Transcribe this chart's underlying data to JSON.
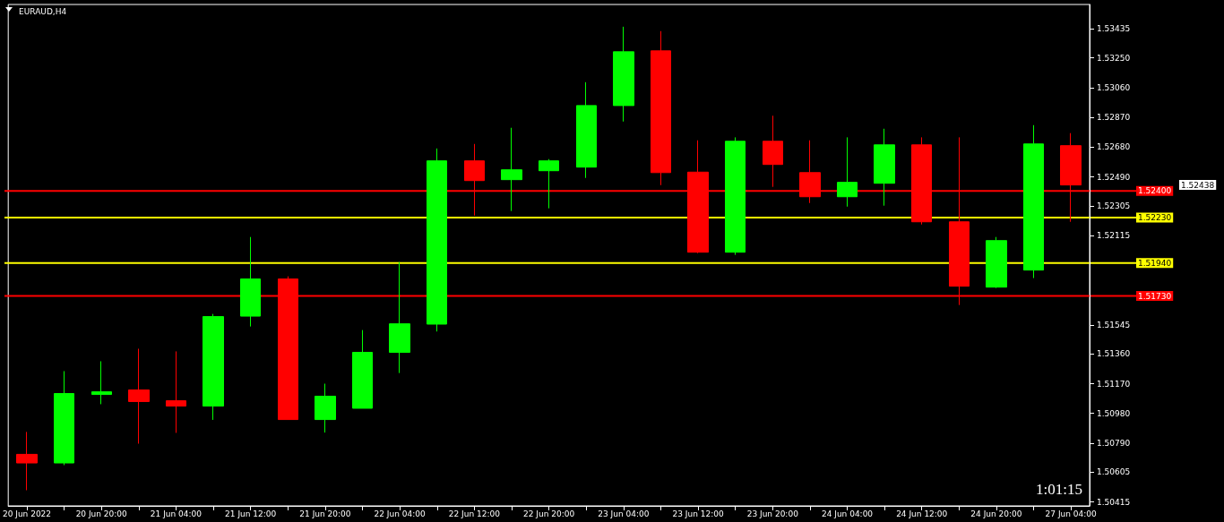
{
  "chart_data": {
    "type": "candlestick",
    "title": "EURAUD,H4",
    "categories": [
      "20 Jun 2022",
      null,
      "20 Jun 20:00",
      null,
      "21 Jun 04:00",
      null,
      "21 Jun 12:00",
      null,
      "21 Jun 20:00",
      null,
      "22 Jun 04:00",
      null,
      "22 Jun 12:00",
      null,
      "22 Jun 20:00",
      null,
      "23 Jun 04:00",
      null,
      "23 Jun 12:00",
      null,
      "23 Jun 20:00",
      null,
      "24 Jun 04:00",
      null,
      "24 Jun 12:00",
      null,
      "24 Jun 20:00",
      null,
      "27 Jun 04:00"
    ],
    "ohlc": [
      [
        1.50719,
        1.50862,
        1.5049,
        1.50664
      ],
      [
        1.50664,
        1.5125,
        1.5065,
        1.51107
      ],
      [
        1.51101,
        1.51313,
        1.51039,
        1.51118
      ],
      [
        1.5113,
        1.51393,
        1.50787,
        1.51056
      ],
      [
        1.51061,
        1.51376,
        1.50856,
        1.51027
      ],
      [
        1.51027,
        1.51615,
        1.50939,
        1.51598
      ],
      [
        1.51601,
        1.52106,
        1.51535,
        1.51838
      ],
      [
        1.51838,
        1.51855,
        1.50941,
        1.50941
      ],
      [
        1.50941,
        1.5117,
        1.50858,
        1.5109
      ],
      [
        1.51013,
        1.51512,
        1.51013,
        1.5137
      ],
      [
        1.5137,
        1.51946,
        1.51238,
        1.51552
      ],
      [
        1.5155,
        1.52671,
        1.51503,
        1.52592
      ],
      [
        1.52592,
        1.527,
        1.52243,
        1.52466
      ],
      [
        1.52472,
        1.52803,
        1.52272,
        1.52535
      ],
      [
        1.52529,
        1.52603,
        1.52289,
        1.52592
      ],
      [
        1.52552,
        1.53094,
        1.52483,
        1.52945
      ],
      [
        1.52945,
        1.53448,
        1.52843,
        1.53288
      ],
      [
        1.53294,
        1.5342,
        1.52437,
        1.52517
      ],
      [
        1.5252,
        1.52723,
        1.52003,
        1.52009
      ],
      [
        1.52009,
        1.52742,
        1.51992,
        1.52717
      ],
      [
        1.52717,
        1.5288,
        1.52426,
        1.52569
      ],
      [
        1.52517,
        1.52723,
        1.52323,
        1.52363
      ],
      [
        1.52363,
        1.52742,
        1.523,
        1.52455
      ],
      [
        1.52449,
        1.52797,
        1.52306,
        1.52694
      ],
      [
        1.52694,
        1.52742,
        1.52186,
        1.52203
      ],
      [
        1.52203,
        1.52742,
        1.51672,
        1.51792
      ],
      [
        1.51786,
        1.52106,
        1.51781,
        1.52083
      ],
      [
        1.51895,
        1.5282,
        1.51844,
        1.527
      ],
      [
        1.52689,
        1.52769,
        1.52203,
        1.52438
      ]
    ],
    "colors": [
      "#ff0000",
      "#00ff00",
      "#00ff00",
      "#ff0000",
      "#ff0000",
      "#00ff00",
      "#00ff00",
      "#ff0000",
      "#00ff00",
      "#00ff00",
      "#00ff00",
      "#00ff00",
      "#ff0000",
      "#00ff00",
      "#00ff00",
      "#00ff00",
      "#00ff00",
      "#ff0000",
      "#ff0000",
      "#00ff00",
      "#ff0000",
      "#ff0000",
      "#00ff00",
      "#00ff00",
      "#ff0000",
      "#ff0000",
      "#00ff00",
      "#00ff00",
      "#ff0000"
    ],
    "ylim": [
      1.5039,
      1.5359
    ],
    "yticks": [
      1.53435,
      {
        "value": 1.5325,
        "label": "1.53250"
      },
      {
        "value": 1.5306,
        "label": "1.53060"
      },
      {
        "value": 1.5287,
        "label": "1.52870"
      },
      {
        "value": 1.5268,
        "label": "1.52680"
      },
      {
        "value": 1.5249,
        "label": "1.52490"
      },
      1.52305,
      1.52115,
      1.51545,
      {
        "value": 1.5136,
        "label": "1.51360"
      },
      {
        "value": 1.5117,
        "label": "1.51170"
      },
      {
        "value": 1.5098,
        "label": "1.50980"
      },
      {
        "value": 1.5079,
        "label": "1.50790"
      },
      1.50605,
      1.50415
    ],
    "ref_lines": [
      {
        "axis": "y",
        "value": 1.524,
        "label": "1.52400",
        "color": "#ff0000"
      },
      {
        "axis": "y",
        "value": 1.5223,
        "label": "1.52230",
        "color": "#ffff00"
      },
      {
        "axis": "y",
        "value": 1.5194,
        "label": "1.51940",
        "color": "#ffff00"
      },
      {
        "axis": "y",
        "value": 1.5173,
        "label": "1.51730",
        "color": "#ff0000"
      }
    ],
    "annotations": [
      "1:01:15",
      "1.52438"
    ],
    "grid": false
  }
}
